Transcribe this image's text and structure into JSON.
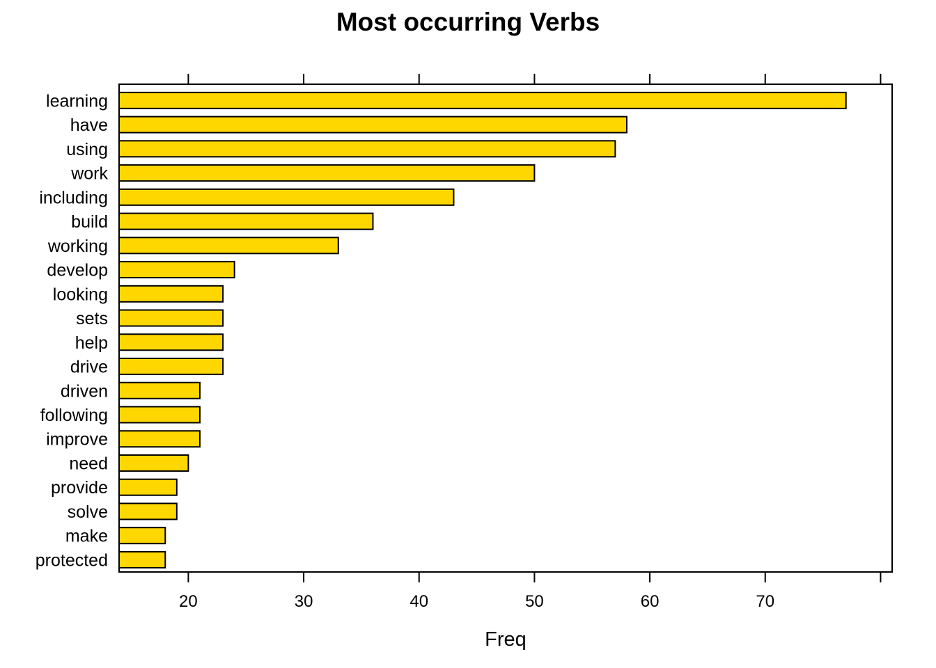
{
  "chart_data": {
    "type": "bar",
    "orientation": "horizontal",
    "title": "Most occurring Verbs",
    "xlabel": "Freq",
    "ylabel": "",
    "categories": [
      "learning",
      "have",
      "using",
      "work",
      "including",
      "build",
      "working",
      "develop",
      "looking",
      "sets",
      "help",
      "drive",
      "driven",
      "following",
      "improve",
      "need",
      "provide",
      "solve",
      "make",
      "protected"
    ],
    "values": [
      77,
      58,
      57,
      50,
      43,
      36,
      33,
      24,
      23,
      23,
      23,
      23,
      21,
      21,
      21,
      20,
      19,
      19,
      18,
      18
    ],
    "xlim": [
      14,
      81
    ],
    "xticks": [
      20,
      30,
      40,
      50,
      60,
      70,
      80
    ],
    "xtick_labels": [
      "20",
      "30",
      "40",
      "50",
      "60",
      "70",
      ""
    ],
    "grid": false,
    "bar_color": "#FFD700",
    "bar_edge_color": "#000000"
  }
}
